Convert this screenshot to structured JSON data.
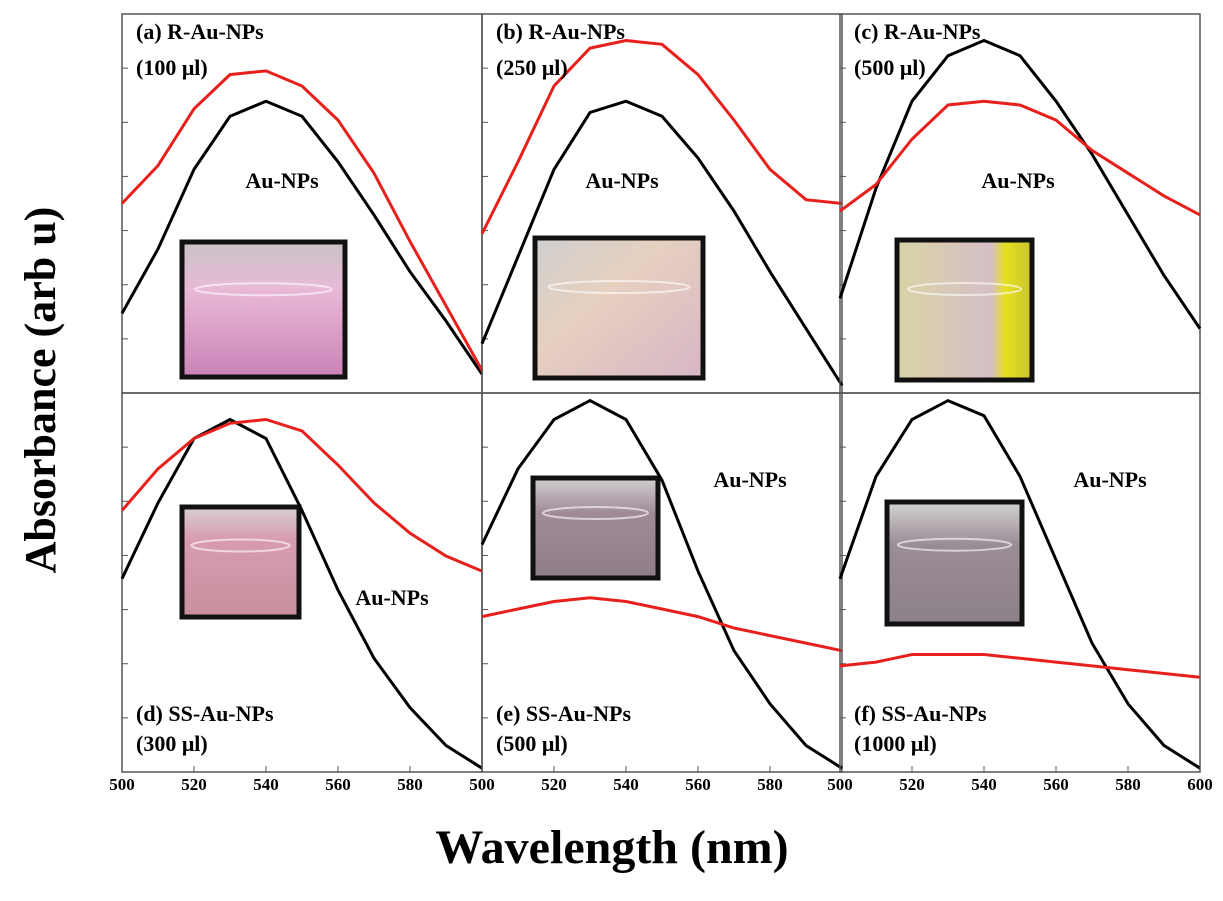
{
  "y_label": "Absorbance (arb u)",
  "x_label": "Wavelength (nm)",
  "chart_data": [
    {
      "type": "line",
      "title": "(a) R-Au-NPs",
      "subtitle": "(100 μl)",
      "annotation": "Au-NPs",
      "x": [
        500,
        510,
        520,
        530,
        540,
        550,
        560,
        570,
        580,
        590,
        600
      ],
      "xlim": [
        500,
        600
      ],
      "ylim": [
        0,
        1
      ],
      "series": [
        {
          "color": "#000000",
          "values": [
            0.21,
            0.38,
            0.59,
            0.73,
            0.77,
            0.73,
            0.61,
            0.47,
            0.32,
            0.19,
            0.05
          ]
        },
        {
          "color": "#e8201c",
          "values": [
            0.5,
            0.6,
            0.75,
            0.84,
            0.85,
            0.81,
            0.72,
            0.58,
            0.4,
            0.23,
            0.06
          ]
        }
      ]
    },
    {
      "type": "line",
      "title": "(b) R-Au-NPs",
      "subtitle": "(250 μl)",
      "annotation": "Au-NPs",
      "x": [
        500,
        510,
        520,
        530,
        540,
        550,
        560,
        570,
        580,
        590,
        600
      ],
      "xlim": [
        500,
        600
      ],
      "ylim": [
        0,
        1
      ],
      "series": [
        {
          "color": "#000000",
          "values": [
            0.13,
            0.36,
            0.59,
            0.74,
            0.77,
            0.73,
            0.62,
            0.48,
            0.32,
            0.17,
            0.02
          ]
        },
        {
          "color": "#e8201c",
          "values": [
            0.42,
            0.61,
            0.81,
            0.91,
            0.93,
            0.92,
            0.84,
            0.72,
            0.59,
            0.51,
            0.5
          ]
        }
      ]
    },
    {
      "type": "line",
      "title": "(c) R-Au-NPs",
      "subtitle": "(500 μl)",
      "annotation": "Au-NPs",
      "x": [
        500,
        510,
        520,
        530,
        540,
        550,
        560,
        570,
        580,
        590,
        600
      ],
      "xlim": [
        500,
        600
      ],
      "ylim": [
        0,
        1
      ],
      "series": [
        {
          "color": "#000000",
          "values": [
            0.25,
            0.54,
            0.77,
            0.89,
            0.93,
            0.89,
            0.77,
            0.63,
            0.47,
            0.31,
            0.17
          ]
        },
        {
          "color": "#e8201c",
          "values": [
            0.48,
            0.55,
            0.67,
            0.76,
            0.77,
            0.76,
            0.72,
            0.64,
            0.58,
            0.52,
            0.47
          ]
        }
      ]
    },
    {
      "type": "line",
      "title": "(d) SS-Au-NPs",
      "subtitle": "(300 μl)",
      "annotation": "Au-NPs",
      "x": [
        500,
        510,
        520,
        530,
        540,
        550,
        560,
        570,
        580,
        590,
        600
      ],
      "xlim": [
        500,
        600
      ],
      "ylim": [
        0,
        1
      ],
      "xticks": [
        500,
        520,
        540,
        560,
        580
      ],
      "series": [
        {
          "color": "#000000",
          "values": [
            0.51,
            0.71,
            0.88,
            0.93,
            0.88,
            0.69,
            0.48,
            0.3,
            0.17,
            0.07,
            0.01
          ]
        },
        {
          "color": "#e8201c",
          "values": [
            0.69,
            0.8,
            0.88,
            0.92,
            0.93,
            0.9,
            0.81,
            0.71,
            0.63,
            0.57,
            0.53
          ]
        }
      ]
    },
    {
      "type": "line",
      "title": "(e) SS-Au-NPs",
      "subtitle": "(500 μl)",
      "annotation": "Au-NPs",
      "x": [
        500,
        510,
        520,
        530,
        540,
        550,
        560,
        570,
        580,
        590,
        600
      ],
      "xlim": [
        500,
        600
      ],
      "ylim": [
        0,
        1
      ],
      "xticks": [
        500,
        520,
        540,
        560,
        580
      ],
      "series": [
        {
          "color": "#000000",
          "values": [
            0.6,
            0.8,
            0.93,
            0.98,
            0.93,
            0.77,
            0.53,
            0.32,
            0.18,
            0.07,
            0.01
          ]
        },
        {
          "color": "#e8201c",
          "values": [
            0.41,
            0.43,
            0.45,
            0.46,
            0.45,
            0.43,
            0.41,
            0.38,
            0.36,
            0.34,
            0.32
          ]
        }
      ]
    },
    {
      "type": "line",
      "title": "(f) SS-Au-NPs",
      "subtitle": "(1000 μl)",
      "annotation": "Au-NPs",
      "x": [
        500,
        510,
        520,
        530,
        540,
        550,
        560,
        570,
        580,
        590,
        600
      ],
      "xlim": [
        500,
        600
      ],
      "ylim": [
        0,
        1
      ],
      "xticks": [
        500,
        520,
        540,
        560,
        580,
        600
      ],
      "series": [
        {
          "color": "#000000",
          "values": [
            0.51,
            0.78,
            0.93,
            0.98,
            0.94,
            0.78,
            0.56,
            0.34,
            0.18,
            0.07,
            0.01
          ]
        },
        {
          "color": "#e8201c",
          "values": [
            0.28,
            0.29,
            0.31,
            0.31,
            0.31,
            0.3,
            0.29,
            0.28,
            0.27,
            0.26,
            0.25
          ]
        }
      ]
    }
  ]
}
